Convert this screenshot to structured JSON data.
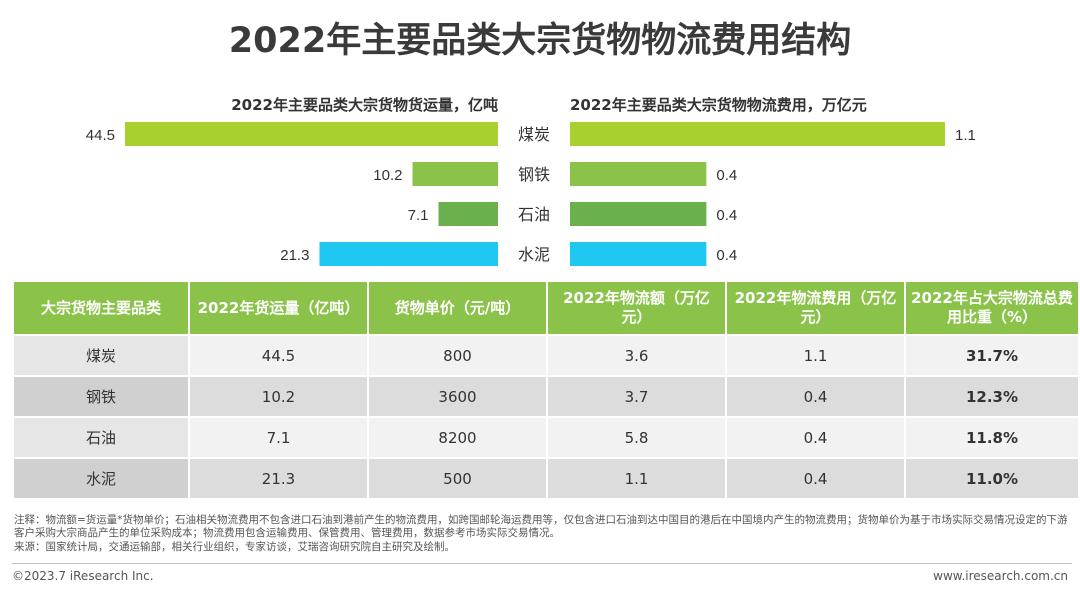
{
  "title": "2022年主要品类大宗货物物流费用结构",
  "chart_data": {
    "type": "bar",
    "categories": [
      "煤炭",
      "钢铁",
      "石油",
      "水泥"
    ],
    "colors": [
      "#a8d130",
      "#8bc34a",
      "#6ab04c",
      "#1ec8f0"
    ],
    "volume": {
      "title": "2022年主要品类大宗货物货运量，亿吨",
      "values": [
        44.5,
        10.2,
        7.1,
        21.3
      ],
      "labels": [
        "44.5",
        "10.2",
        "7.1",
        "21.3"
      ]
    },
    "cost": {
      "title": "2022年主要品类大宗货物物流费用，万亿元",
      "values": [
        1.1,
        0.4,
        0.4,
        0.4
      ],
      "labels": [
        "1.1",
        "0.4",
        "0.4",
        "0.4"
      ]
    }
  },
  "table": {
    "headers": [
      "大宗货物主要品类",
      "2022年货运量（亿吨）",
      "货物单价（元/吨）",
      "2022年物流额（万亿元）",
      "2022年物流费用（万亿元）",
      "2022年占大宗物流总费用比重（%）"
    ],
    "rows": [
      [
        "煤炭",
        "44.5",
        "800",
        "3.6",
        "1.1",
        "31.7%"
      ],
      [
        "钢铁",
        "10.2",
        "3600",
        "3.7",
        "0.4",
        "12.3%"
      ],
      [
        "石油",
        "7.1",
        "8200",
        "5.8",
        "0.4",
        "11.8%"
      ],
      [
        "水泥",
        "21.3",
        "500",
        "1.1",
        "0.4",
        "11.0%"
      ]
    ]
  },
  "notes": {
    "line1": "注释：物流额=货运量*货物单价；石油相关物流费用不包含进口石油到港前产生的物流费用，如跨国邮轮海运费用等，仅包含进口石油到达中国目的港后在中国境内产生的物流费用；货物单价为基于市场实际交易情况设定的下游客户采购大宗商品产生的单位采购成本；物流费用包含运输费用、保管费用、管理费用，数据参考市场实际交易情况。",
    "line2": "来源：国家统计局，交通运输部，相关行业组织，专家访谈，艾瑞咨询研究院自主研究及绘制。"
  },
  "footer": {
    "left": "©2023.7 iResearch Inc.",
    "right": "www.iresearch.com.cn"
  }
}
